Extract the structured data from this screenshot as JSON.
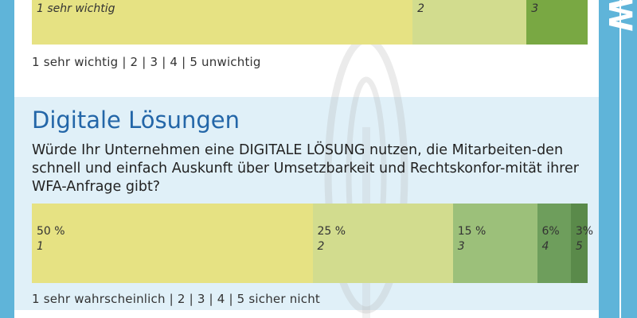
{
  "colors": {
    "frame": "#5fb4d9",
    "panel_bg": "#e0f0f8",
    "title": "#2366a8",
    "seg_1": "#e6e283",
    "seg_2": "#d2dc8e",
    "seg_3": "#9cc07a",
    "seg_4": "#6e9e5c",
    "seg_5": "#5a8a4a",
    "top_seg_1": "#e6e283",
    "top_seg_2": "#d2dc8e",
    "top_seg_3": "#79a843"
  },
  "side_label": "W",
  "top_section": {
    "scale_text": "1  sehr wichtig  |  2  |  3  |  4  |  5  unwichtig"
  },
  "digital_section": {
    "title": "Digitale Lösungen",
    "question": "Würde Ihr Unternehmen eine DIGITALE LÖSUNG nutzen, die Mitarbeiten-den schnell und einfach Auskunft über Umsetzbarkeit und Rechtskonfor-mität ihrer WFA-Anfrage gibt?",
    "scale_text": "1  sehr wahrscheinlich  |  2  |  3  |  4  |  5  sicher nicht"
  },
  "chart_data": [
    {
      "type": "bar",
      "orientation": "horizontal-stacked",
      "note": "partially visible, cropped at top",
      "categories": [
        "1 sehr wichtig",
        "2",
        "3"
      ],
      "labels": [
        "1 sehr wichtig",
        "2",
        "3"
      ],
      "values": [
        68.5,
        20.5,
        11
      ],
      "xlim": [
        0,
        100
      ]
    },
    {
      "type": "bar",
      "orientation": "horizontal-stacked",
      "title": "Digitale Lösungen",
      "categories": [
        "1",
        "2",
        "3",
        "4",
        "5"
      ],
      "pct_labels": [
        "50 %",
        "25 %",
        "15 %",
        "6%",
        "3%"
      ],
      "values": [
        50,
        25,
        15,
        6,
        3
      ],
      "xlim": [
        0,
        100
      ]
    }
  ]
}
